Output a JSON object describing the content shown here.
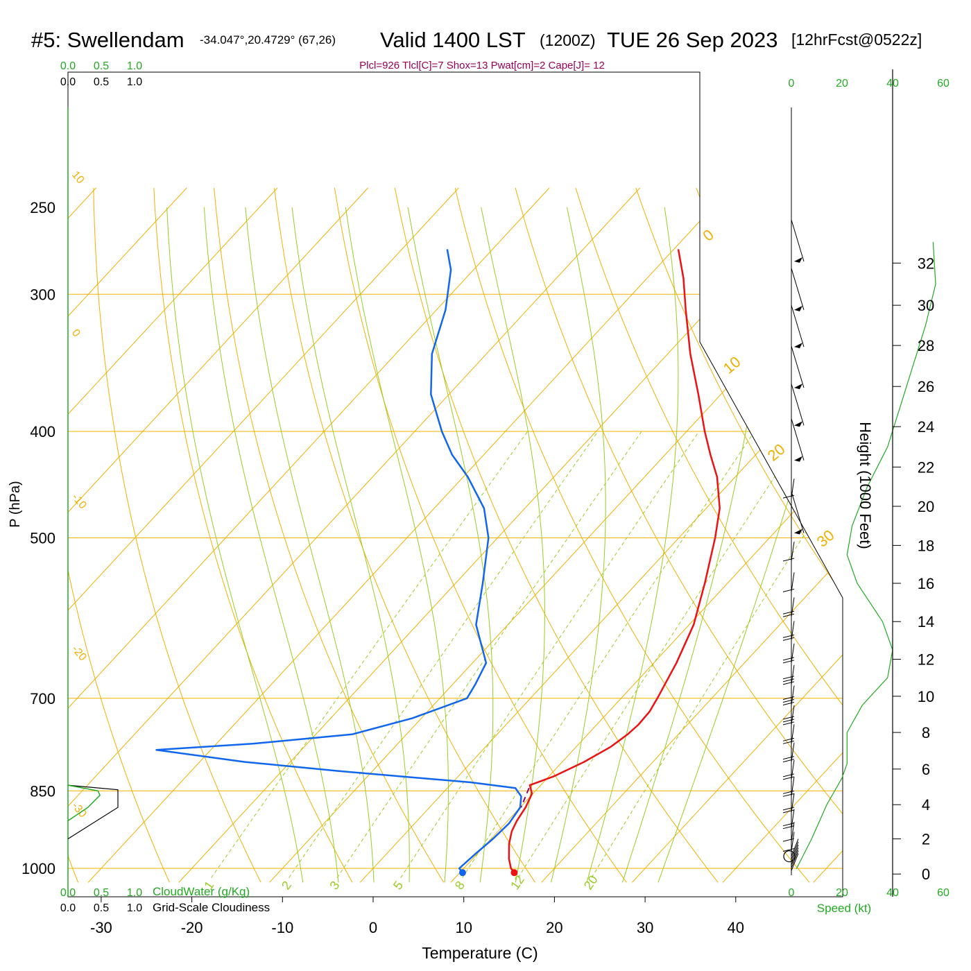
{
  "header": {
    "station": "#5: Swellendam",
    "coords": "-34.047°,20.4729° (67,26)",
    "valid": "Valid 1400 LST",
    "zulu": "(1200Z)",
    "date": "TUE 26 Sep 2023",
    "forecast": "[12hrFcst@0522z]"
  },
  "indices": "Plcl=926 Tlcl[C]=7 Shox=13 Pwat[cm]=2 Cape[J]= 12",
  "colors": {
    "temperature": "#ee1111",
    "dewpoint": "#1166ee",
    "isotherm_isobar": "#f0b000",
    "dry_adiabat": "#f0b000",
    "moist_adiabat": "#99cc22",
    "mixing_ratio": "#99cc22",
    "cloud_water": "#22aa22",
    "cloudiness": "#000000",
    "indices": "#990055",
    "wind_axis": "#22aa22"
  },
  "chart_data": {
    "type": "line",
    "subtype": "skew-t log-p sounding",
    "xlabel": "Temperature (C)",
    "ylabel": "P (hPa)",
    "right_label": "Height (1000 Feet)",
    "x_ticks": [
      "-30",
      "-20",
      "-10",
      "0",
      "10",
      "20",
      "30",
      "40"
    ],
    "x_tick_values": [
      -30,
      -20,
      -10,
      0,
      10,
      20,
      30,
      40
    ],
    "p_ticks": [
      "250",
      "300",
      "400",
      "500",
      "700",
      "850",
      "1000"
    ],
    "p_tick_values": [
      250,
      300,
      400,
      500,
      700,
      850,
      1000
    ],
    "height_ticks": [
      "0",
      "2",
      "4",
      "6",
      "8",
      "10",
      "12",
      "14",
      "16",
      "18",
      "20",
      "22",
      "24",
      "26",
      "28",
      "30",
      "32"
    ],
    "height_tick_pressures": [
      1012,
      940,
      875,
      812,
      752,
      697,
      645,
      596,
      550,
      508,
      468,
      431,
      396,
      364,
      334,
      307,
      281
    ],
    "temperature_profile": [
      {
        "p": 1009,
        "t": 16.0
      },
      {
        "p": 1000,
        "t": 15.2
      },
      {
        "p": 980,
        "t": 14.0
      },
      {
        "p": 950,
        "t": 12.5
      },
      {
        "p": 925,
        "t": 11.5
      },
      {
        "p": 905,
        "t": 11.0
      },
      {
        "p": 880,
        "t": 10.6
      },
      {
        "p": 855,
        "t": 9.9
      },
      {
        "p": 840,
        "t": 8.8
      },
      {
        "p": 825,
        "t": 10.5
      },
      {
        "p": 800,
        "t": 12.4
      },
      {
        "p": 775,
        "t": 13.8
      },
      {
        "p": 755,
        "t": 14.4
      },
      {
        "p": 740,
        "t": 14.6
      },
      {
        "p": 720,
        "t": 14.5
      },
      {
        "p": 700,
        "t": 14.0
      },
      {
        "p": 650,
        "t": 12.5
      },
      {
        "p": 600,
        "t": 10.5
      },
      {
        "p": 550,
        "t": 7.5
      },
      {
        "p": 500,
        "t": 4.0
      },
      {
        "p": 470,
        "t": 1.5
      },
      {
        "p": 440,
        "t": -2.0
      },
      {
        "p": 420,
        "t": -5.0
      },
      {
        "p": 400,
        "t": -8.0
      },
      {
        "p": 370,
        "t": -12.5
      },
      {
        "p": 340,
        "t": -17.5
      },
      {
        "p": 310,
        "t": -22.5
      },
      {
        "p": 290,
        "t": -26.0
      },
      {
        "p": 273,
        "t": -29.5
      }
    ],
    "dewpoint_profile": [
      {
        "p": 1009,
        "t": 10.3
      },
      {
        "p": 1000,
        "t": 9.5
      },
      {
        "p": 970,
        "t": 9.8
      },
      {
        "p": 940,
        "t": 10.2
      },
      {
        "p": 910,
        "t": 10.4
      },
      {
        "p": 880,
        "t": 10.0
      },
      {
        "p": 860,
        "t": 9.0
      },
      {
        "p": 845,
        "t": 7.5
      },
      {
        "p": 835,
        "t": 2.0
      },
      {
        "p": 825,
        "t": -6.0
      },
      {
        "p": 815,
        "t": -14.0
      },
      {
        "p": 800,
        "t": -25.0
      },
      {
        "p": 780,
        "t": -36.0
      },
      {
        "p": 770,
        "t": -26.0
      },
      {
        "p": 755,
        "t": -16.0
      },
      {
        "p": 730,
        "t": -11.0
      },
      {
        "p": 700,
        "t": -7.0
      },
      {
        "p": 680,
        "t": -7.5
      },
      {
        "p": 650,
        "t": -8.5
      },
      {
        "p": 600,
        "t": -13.5
      },
      {
        "p": 550,
        "t": -17.0
      },
      {
        "p": 500,
        "t": -21.0
      },
      {
        "p": 470,
        "t": -24.5
      },
      {
        "p": 440,
        "t": -29.5
      },
      {
        "p": 420,
        "t": -33.5
      },
      {
        "p": 400,
        "t": -37.0
      },
      {
        "p": 370,
        "t": -42.0
      },
      {
        "p": 340,
        "t": -46.0
      },
      {
        "p": 310,
        "t": -49.0
      },
      {
        "p": 285,
        "t": -52.5
      },
      {
        "p": 273,
        "t": -55.0
      }
    ],
    "surface_points": {
      "temperature": 16.0,
      "dewpoint": 10.3,
      "p": 1009
    },
    "parcel_segment": [
      {
        "p": 845,
        "t": 9.0
      },
      {
        "p": 880,
        "t": 10.1
      }
    ],
    "isotherm_labels": [
      "0",
      "10",
      "20",
      "30"
    ],
    "isotherm_label_values": [
      0,
      10,
      20,
      30
    ],
    "dry_adiabat_labels": [
      "10",
      "0",
      "-10",
      "-20",
      "-30"
    ],
    "dry_adiabat_label_values": [
      10,
      0,
      -10,
      -20,
      -30
    ],
    "mixing_ratio_labels": [
      "1",
      "2",
      "3",
      "5",
      "8",
      "12",
      "20"
    ],
    "mixing_ratio_values": [
      1,
      2,
      3,
      5,
      8,
      12,
      20
    ],
    "moist_adiabat_thetaw": [
      -8,
      -4,
      0,
      4,
      8,
      12,
      16,
      20,
      24,
      28,
      32
    ],
    "dry_adiabat_theta": [
      230,
      240,
      250,
      260,
      270,
      280,
      290,
      300,
      310,
      320,
      330,
      340,
      350,
      360,
      370,
      380,
      390,
      400,
      410,
      420,
      430,
      440,
      450,
      460,
      470
    ],
    "cloud_axis": {
      "cloudwater_label": "CloudWater (g/Kg)",
      "cloudiness_label": "Grid-Scale Cloudiness",
      "ticks": [
        "0.0",
        "0.5",
        "1.0"
      ],
      "tick_values": [
        0,
        0.5,
        1.0
      ]
    },
    "cloud_water_profile": [
      {
        "p": 840,
        "v": 0.0
      },
      {
        "p": 850,
        "v": 0.45
      },
      {
        "p": 858,
        "v": 0.48
      },
      {
        "p": 880,
        "v": 0.3
      },
      {
        "p": 905,
        "v": 0.0
      }
    ],
    "cloudiness_profile": [
      {
        "p": 840,
        "v": 0.0
      },
      {
        "p": 848,
        "v": 0.75
      },
      {
        "p": 880,
        "v": 0.75
      },
      {
        "p": 940,
        "v": 0.0
      }
    ],
    "wind_speed_axis": {
      "label": "Speed (kt)",
      "ticks": [
        "0",
        "20",
        "40",
        "60"
      ],
      "tick_values": [
        0,
        20,
        40,
        60
      ]
    },
    "wind_speed_profile": [
      {
        "h": 0.3,
        "s": 2
      },
      {
        "h": 2.0,
        "s": 8
      },
      {
        "h": 4.0,
        "s": 14
      },
      {
        "h": 5.5,
        "s": 20
      },
      {
        "h": 6.3,
        "s": 22
      },
      {
        "h": 8.0,
        "s": 22
      },
      {
        "h": 9.5,
        "s": 28
      },
      {
        "h": 11.0,
        "s": 38
      },
      {
        "h": 12.5,
        "s": 40
      },
      {
        "h": 14.0,
        "s": 36
      },
      {
        "h": 16.0,
        "s": 26
      },
      {
        "h": 17.5,
        "s": 22
      },
      {
        "h": 19.0,
        "s": 24
      },
      {
        "h": 21.0,
        "s": 30
      },
      {
        "h": 23.0,
        "s": 38
      },
      {
        "h": 25.0,
        "s": 43
      },
      {
        "h": 27.0,
        "s": 48
      },
      {
        "h": 29.0,
        "s": 53
      },
      {
        "h": 31.0,
        "s": 57
      },
      {
        "h": 33.0,
        "s": 56
      }
    ],
    "wind_barbs": [
      {
        "p": 280,
        "kt": 12
      },
      {
        "p": 310,
        "kt": 13
      },
      {
        "p": 335,
        "kt": 13
      },
      {
        "p": 365,
        "kt": 12
      },
      {
        "p": 395,
        "kt": 11
      },
      {
        "p": 425,
        "kt": 10
      },
      {
        "p": 460,
        "kt": 8
      },
      {
        "p": 495,
        "kt": 10
      },
      {
        "p": 525,
        "kt": 10
      },
      {
        "p": 560,
        "kt": 12
      },
      {
        "p": 590,
        "kt": 15
      },
      {
        "p": 620,
        "kt": 20
      },
      {
        "p": 650,
        "kt": 22
      },
      {
        "p": 680,
        "kt": 25
      },
      {
        "p": 710,
        "kt": 25
      },
      {
        "p": 740,
        "kt": 25
      },
      {
        "p": 770,
        "kt": 22
      },
      {
        "p": 800,
        "kt": 20
      },
      {
        "p": 830,
        "kt": 20
      },
      {
        "p": 860,
        "kt": 18
      },
      {
        "p": 890,
        "kt": 15
      },
      {
        "p": 920,
        "kt": 15
      },
      {
        "p": 945,
        "kt": 12
      },
      {
        "p": 965,
        "kt": 10
      }
    ]
  }
}
